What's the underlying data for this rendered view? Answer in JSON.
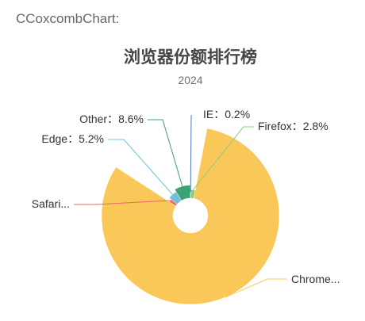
{
  "caption": "CCoxcombChart:",
  "chart_data": {
    "type": "pie",
    "variant": "rose",
    "title": "浏览器份额排行榜",
    "subtitle": "2024",
    "slices": [
      {
        "name": "IE",
        "value": 0.2,
        "label": "IE：0.2%",
        "color": "#5470c6"
      },
      {
        "name": "Firefox",
        "value": 2.8,
        "label": "Firefox：2.8%",
        "color": "#91cc75"
      },
      {
        "name": "Chrome",
        "value": 81.2,
        "label": "Chrome...",
        "color": "#fac858"
      },
      {
        "name": "Safari",
        "value": 2.0,
        "label": "Safari...",
        "color": "#ee6666"
      },
      {
        "name": "Edge",
        "value": 5.2,
        "label": "Edge：5.2%",
        "color": "#73c0de"
      },
      {
        "name": "Other",
        "value": 8.6,
        "label": "Other：8.6%",
        "color": "#3ba272"
      }
    ]
  }
}
